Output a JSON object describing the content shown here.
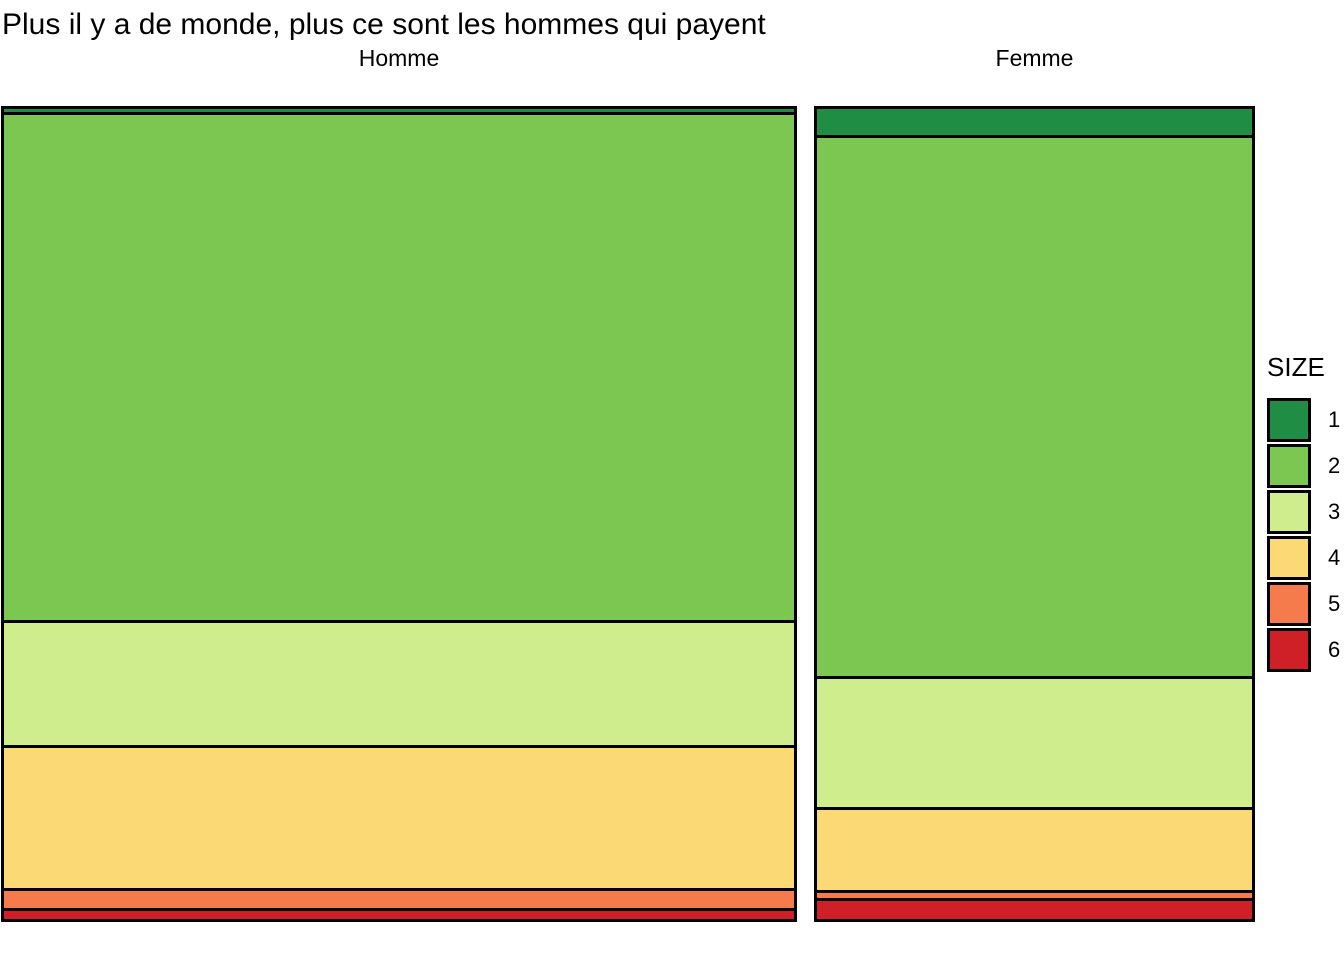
{
  "title": "Plus il y a de monde, plus ce sont les hommes qui payent",
  "columns": [
    {
      "label": "Homme",
      "segments_pct": [
        0.4,
        63.5,
        15.3,
        17.7,
        2.1,
        1.0
      ]
    },
    {
      "label": "Femme",
      "segments_pct": [
        3.3,
        67.7,
        16.1,
        10.0,
        0.6,
        2.3
      ]
    }
  ],
  "legend": {
    "title": "SIZE",
    "items": [
      {
        "label": "1",
        "color": "#1f8e44"
      },
      {
        "label": "2",
        "color": "#7bc751"
      },
      {
        "label": "3",
        "color": "#d0ed8d"
      },
      {
        "label": "4",
        "color": "#fbda76"
      },
      {
        "label": "5",
        "color": "#f57a4c"
      },
      {
        "label": "6",
        "color": "#d02027"
      }
    ]
  },
  "chart_data": {
    "type": "bar",
    "variant": "mosaic / 100%-stacked spine plot (column width proportional to group size)",
    "title": "Plus il y a de monde, plus ce sont les hommes qui payent",
    "categories": [
      "Homme",
      "Femme"
    ],
    "category_width_fractions": [
      0.64,
      0.36
    ],
    "legend_title": "SIZE",
    "legend_position": "right",
    "units": "percent of column height",
    "series": [
      {
        "name": "1",
        "color": "#1f8e44",
        "values": [
          0.4,
          3.3
        ]
      },
      {
        "name": "2",
        "color": "#7bc751",
        "values": [
          63.5,
          67.7
        ]
      },
      {
        "name": "3",
        "color": "#d0ed8d",
        "values": [
          15.3,
          16.1
        ]
      },
      {
        "name": "4",
        "color": "#fbda76",
        "values": [
          17.7,
          10.0
        ]
      },
      {
        "name": "5",
        "color": "#f57a4c",
        "values": [
          2.1,
          0.6
        ]
      },
      {
        "name": "6",
        "color": "#d02027",
        "values": [
          1.0,
          2.3
        ]
      }
    ],
    "ylim": [
      0,
      1
    ],
    "grid": false
  }
}
